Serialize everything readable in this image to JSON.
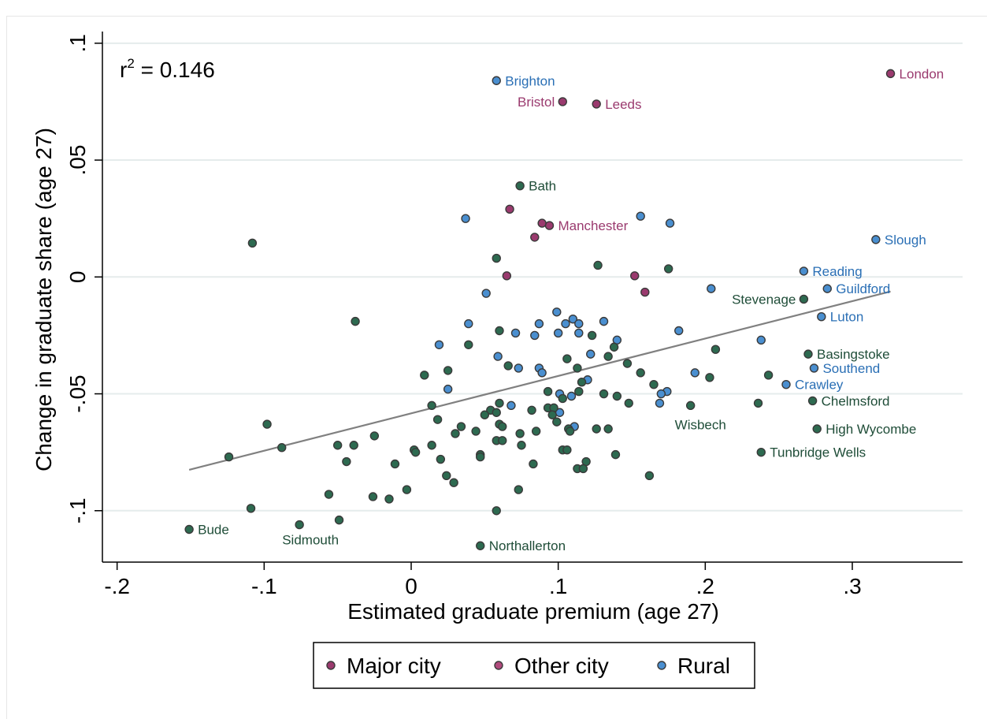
{
  "chart_data": {
    "type": "scatter",
    "xlabel": "Estimated graduate premium (age 27)",
    "ylabel": "Change in graduate share (age 27)",
    "xlim": [
      -0.21,
      0.375
    ],
    "ylim": [
      -0.122,
      0.105
    ],
    "x_ticks": [
      -0.2,
      -0.1,
      0,
      0.1,
      0.2,
      0.3
    ],
    "x_tick_labels": [
      "-.2",
      "-.1",
      "0",
      ".1",
      ".2",
      ".3"
    ],
    "y_ticks": [
      -0.1,
      -0.05,
      0,
      0.05,
      0.1
    ],
    "y_tick_labels": [
      "-.1",
      "-.05",
      "0",
      ".05",
      ".1"
    ],
    "grid": "horizontal",
    "annotation": {
      "base": "r",
      "sup": "2",
      "rest": " = 0.146"
    },
    "fit_line": {
      "x": [
        -0.151,
        0.326
      ],
      "y": [
        -0.0825,
        -0.0062
      ]
    },
    "legend": {
      "placement": "bottom",
      "items": [
        {
          "label": "Major city",
          "color": "#9a3a6e"
        },
        {
          "label": "Other city",
          "color": "#b04a7c"
        },
        {
          "label": "Rural",
          "color": "#4a8fd0"
        }
      ]
    },
    "colors": {
      "major": "#9a3a6e",
      "other": "#b04a7c",
      "rural": "#4a8fd0",
      "rural_text": "#2a6fb5",
      "town": "#2d6a50",
      "town_text": "#1f4d38",
      "fit": "#808080",
      "grid": "#e5ecec"
    },
    "series": [
      {
        "key": "major",
        "name": "Major city",
        "points": [
          {
            "x": 0.326,
            "y": 0.087,
            "label": "London",
            "pos": "right"
          },
          {
            "x": 0.103,
            "y": 0.075,
            "label": "Bristol",
            "pos": "left"
          },
          {
            "x": 0.126,
            "y": 0.074,
            "label": "Leeds",
            "pos": "right"
          },
          {
            "x": 0.094,
            "y": 0.022,
            "label": "Manchester",
            "pos": "right"
          },
          {
            "x": 0.089,
            "y": 0.023
          },
          {
            "x": 0.067,
            "y": 0.029
          },
          {
            "x": 0.084,
            "y": 0.017
          },
          {
            "x": 0.065,
            "y": 0.0005
          },
          {
            "x": 0.152,
            "y": 0.0005
          },
          {
            "x": 0.159,
            "y": -0.0065
          }
        ]
      },
      {
        "key": "rural",
        "name": "Rural",
        "points": [
          {
            "x": 0.058,
            "y": 0.084,
            "label": "Brighton",
            "pos": "right"
          },
          {
            "x": 0.316,
            "y": 0.016,
            "label": "Slough",
            "pos": "right"
          },
          {
            "x": 0.267,
            "y": 0.0025,
            "label": "Reading",
            "pos": "right"
          },
          {
            "x": 0.283,
            "y": -0.005,
            "label": "Guildford",
            "pos": "right"
          },
          {
            "x": 0.279,
            "y": -0.017,
            "label": "Luton",
            "pos": "right"
          },
          {
            "x": 0.274,
            "y": -0.039,
            "label": "Southend",
            "pos": "right"
          },
          {
            "x": 0.255,
            "y": -0.046,
            "label": "Crawley",
            "pos": "right"
          },
          {
            "x": 0.037,
            "y": 0.025
          },
          {
            "x": 0.156,
            "y": 0.026
          },
          {
            "x": 0.176,
            "y": 0.023
          },
          {
            "x": 0.051,
            "y": -0.007
          },
          {
            "x": 0.204,
            "y": -0.005
          },
          {
            "x": 0.099,
            "y": -0.015
          },
          {
            "x": 0.039,
            "y": -0.02
          },
          {
            "x": 0.087,
            "y": -0.02
          },
          {
            "x": 0.105,
            "y": -0.02
          },
          {
            "x": 0.11,
            "y": -0.018
          },
          {
            "x": 0.114,
            "y": -0.02
          },
          {
            "x": 0.131,
            "y": -0.019
          },
          {
            "x": 0.182,
            "y": -0.023
          },
          {
            "x": 0.071,
            "y": -0.024
          },
          {
            "x": 0.084,
            "y": -0.025
          },
          {
            "x": 0.1,
            "y": -0.024
          },
          {
            "x": 0.114,
            "y": -0.024
          },
          {
            "x": 0.019,
            "y": -0.029
          },
          {
            "x": 0.14,
            "y": -0.027
          },
          {
            "x": 0.238,
            "y": -0.027
          },
          {
            "x": 0.122,
            "y": -0.033
          },
          {
            "x": 0.059,
            "y": -0.034
          },
          {
            "x": 0.073,
            "y": -0.039
          },
          {
            "x": 0.087,
            "y": -0.039
          },
          {
            "x": 0.089,
            "y": -0.041
          },
          {
            "x": 0.193,
            "y": -0.041
          },
          {
            "x": 0.12,
            "y": -0.044
          },
          {
            "x": 0.025,
            "y": -0.048
          },
          {
            "x": 0.101,
            "y": -0.05
          },
          {
            "x": 0.109,
            "y": -0.051
          },
          {
            "x": 0.174,
            "y": -0.049
          },
          {
            "x": 0.17,
            "y": -0.05
          },
          {
            "x": 0.068,
            "y": -0.055
          },
          {
            "x": 0.169,
            "y": -0.054
          },
          {
            "x": 0.101,
            "y": -0.058
          },
          {
            "x": 0.111,
            "y": -0.064
          }
        ]
      },
      {
        "key": "town",
        "name": "",
        "points": [
          {
            "x": 0.074,
            "y": 0.039,
            "label": "Bath",
            "pos": "right"
          },
          {
            "x": 0.267,
            "y": -0.0095,
            "label": "Stevenage",
            "pos": "left"
          },
          {
            "x": 0.27,
            "y": -0.033,
            "label": "Basingstoke",
            "pos": "right"
          },
          {
            "x": 0.273,
            "y": -0.053,
            "label": "Chelmsford",
            "pos": "right"
          },
          {
            "x": 0.19,
            "y": -0.055,
            "label": "Wisbech",
            "pos": "below"
          },
          {
            "x": 0.276,
            "y": -0.065,
            "label": "High Wycombe",
            "pos": "right"
          },
          {
            "x": 0.238,
            "y": -0.075,
            "label": "Tunbridge Wells",
            "pos": "right"
          },
          {
            "x": -0.151,
            "y": -0.108,
            "label": "Bude",
            "pos": "right"
          },
          {
            "x": -0.076,
            "y": -0.106,
            "label": "Sidmouth",
            "pos": "belowleft"
          },
          {
            "x": 0.047,
            "y": -0.115,
            "label": "Northallerton",
            "pos": "right"
          },
          {
            "x": -0.108,
            "y": 0.0145
          },
          {
            "x": 0.058,
            "y": 0.008
          },
          {
            "x": 0.127,
            "y": 0.005
          },
          {
            "x": 0.175,
            "y": 0.0035
          },
          {
            "x": -0.038,
            "y": -0.019
          },
          {
            "x": 0.06,
            "y": -0.023
          },
          {
            "x": 0.123,
            "y": -0.025
          },
          {
            "x": 0.039,
            "y": -0.029
          },
          {
            "x": 0.138,
            "y": -0.03
          },
          {
            "x": 0.207,
            "y": -0.031
          },
          {
            "x": 0.134,
            "y": -0.034
          },
          {
            "x": 0.106,
            "y": -0.035
          },
          {
            "x": 0.147,
            "y": -0.037
          },
          {
            "x": 0.066,
            "y": -0.038
          },
          {
            "x": 0.113,
            "y": -0.039
          },
          {
            "x": 0.025,
            "y": -0.04
          },
          {
            "x": 0.156,
            "y": -0.041
          },
          {
            "x": 0.009,
            "y": -0.042
          },
          {
            "x": 0.243,
            "y": -0.042
          },
          {
            "x": 0.203,
            "y": -0.043
          },
          {
            "x": 0.116,
            "y": -0.045
          },
          {
            "x": 0.165,
            "y": -0.046
          },
          {
            "x": 0.093,
            "y": -0.049
          },
          {
            "x": 0.114,
            "y": -0.049
          },
          {
            "x": 0.131,
            "y": -0.05
          },
          {
            "x": 0.14,
            "y": -0.051
          },
          {
            "x": 0.103,
            "y": -0.052
          },
          {
            "x": 0.148,
            "y": -0.054
          },
          {
            "x": 0.236,
            "y": -0.054
          },
          {
            "x": 0.06,
            "y": -0.054
          },
          {
            "x": 0.014,
            "y": -0.055
          },
          {
            "x": 0.082,
            "y": -0.057
          },
          {
            "x": 0.093,
            "y": -0.056
          },
          {
            "x": 0.097,
            "y": -0.056
          },
          {
            "x": 0.054,
            "y": -0.057
          },
          {
            "x": 0.058,
            "y": -0.058
          },
          {
            "x": 0.05,
            "y": -0.059
          },
          {
            "x": 0.096,
            "y": -0.059
          },
          {
            "x": 0.018,
            "y": -0.061
          },
          {
            "x": 0.099,
            "y": -0.062
          },
          {
            "x": 0.06,
            "y": -0.063
          },
          {
            "x": 0.062,
            "y": -0.064
          },
          {
            "x": 0.034,
            "y": -0.064
          },
          {
            "x": 0.107,
            "y": -0.065
          },
          {
            "x": 0.108,
            "y": -0.066
          },
          {
            "x": 0.126,
            "y": -0.065
          },
          {
            "x": 0.134,
            "y": -0.065
          },
          {
            "x": 0.044,
            "y": -0.066
          },
          {
            "x": 0.03,
            "y": -0.067
          },
          {
            "x": 0.074,
            "y": -0.067
          },
          {
            "x": 0.085,
            "y": -0.066
          },
          {
            "x": -0.025,
            "y": -0.068
          },
          {
            "x": 0.058,
            "y": -0.07
          },
          {
            "x": 0.062,
            "y": -0.07
          },
          {
            "x": -0.039,
            "y": -0.072
          },
          {
            "x": -0.05,
            "y": -0.072
          },
          {
            "x": 0.014,
            "y": -0.072
          },
          {
            "x": 0.075,
            "y": -0.072
          },
          {
            "x": -0.098,
            "y": -0.063
          },
          {
            "x": -0.088,
            "y": -0.073
          },
          {
            "x": 0.002,
            "y": -0.074
          },
          {
            "x": 0.103,
            "y": -0.074
          },
          {
            "x": 0.106,
            "y": -0.074
          },
          {
            "x": 0.003,
            "y": -0.075
          },
          {
            "x": 0.047,
            "y": -0.076
          },
          {
            "x": 0.139,
            "y": -0.076
          },
          {
            "x": 0.047,
            "y": -0.077
          },
          {
            "x": -0.124,
            "y": -0.077
          },
          {
            "x": 0.02,
            "y": -0.078
          },
          {
            "x": -0.044,
            "y": -0.079
          },
          {
            "x": 0.119,
            "y": -0.079
          },
          {
            "x": -0.011,
            "y": -0.08
          },
          {
            "x": 0.083,
            "y": -0.08
          },
          {
            "x": 0.113,
            "y": -0.082
          },
          {
            "x": 0.117,
            "y": -0.082
          },
          {
            "x": 0.024,
            "y": -0.085
          },
          {
            "x": 0.162,
            "y": -0.085
          },
          {
            "x": 0.029,
            "y": -0.088
          },
          {
            "x": 0.073,
            "y": -0.091
          },
          {
            "x": -0.056,
            "y": -0.093
          },
          {
            "x": -0.026,
            "y": -0.094
          },
          {
            "x": -0.015,
            "y": -0.095
          },
          {
            "x": -0.003,
            "y": -0.091
          },
          {
            "x": -0.109,
            "y": -0.099
          },
          {
            "x": 0.058,
            "y": -0.1
          },
          {
            "x": -0.049,
            "y": -0.104
          }
        ]
      }
    ]
  }
}
